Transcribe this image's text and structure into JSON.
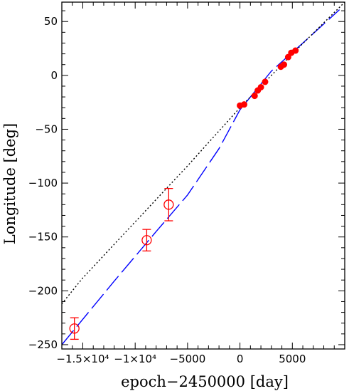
{
  "chart_data": {
    "type": "scatter",
    "title": "",
    "xlabel": "epoch−2450000 [day]",
    "ylabel": "Longitude [deg]",
    "xlim": [
      -17000,
      10000
    ],
    "ylim": [
      -254,
      68
    ],
    "grid": false,
    "x_ticks": [
      {
        "value": -15000,
        "label": "−1.5×10⁴"
      },
      {
        "value": -10000,
        "label": "−1×10⁴"
      },
      {
        "value": -5000,
        "label": "−5000"
      },
      {
        "value": 0,
        "label": "0"
      },
      {
        "value": 5000,
        "label": "5000"
      }
    ],
    "y_ticks": [
      {
        "value": 50,
        "label": "50"
      },
      {
        "value": 0,
        "label": "0"
      },
      {
        "value": -50,
        "label": "−50"
      },
      {
        "value": -100,
        "label": "−100"
      },
      {
        "value": -150,
        "label": "−150"
      },
      {
        "value": -200,
        "label": "−200"
      },
      {
        "value": -250,
        "label": "−250"
      }
    ],
    "series": [
      {
        "style": "filled-points",
        "color": "#ff0000",
        "x": [
          0,
          400,
          1400,
          1700,
          2000,
          2400,
          3900,
          4200,
          4600,
          4900,
          5300
        ],
        "y": [
          -28,
          -27,
          -19,
          -14,
          -11,
          -6,
          8,
          10,
          17,
          21,
          23
        ]
      },
      {
        "style": "open-circles-with-errorbars",
        "color": "#ff0000",
        "x": [
          -15800,
          -8900,
          -6800
        ],
        "y": [
          -235,
          -153,
          -120
        ],
        "yerr": [
          10,
          10,
          15
        ]
      },
      {
        "style": "dashed-line",
        "color": "#0000ff",
        "x": [
          -17000,
          -12000,
          -8000,
          -5000,
          -2000,
          0,
          3000,
          6000,
          9500
        ],
        "y": [
          -250,
          -191,
          -145,
          -111,
          -68,
          -32,
          4,
          30,
          61
        ]
      },
      {
        "style": "dotted-line",
        "color": "#000000",
        "x": [
          -17000,
          -15000,
          -10000,
          -5000,
          0,
          5000,
          10000
        ],
        "y": [
          -212,
          -188,
          -136,
          -84,
          -30,
          20,
          68
        ]
      }
    ]
  }
}
